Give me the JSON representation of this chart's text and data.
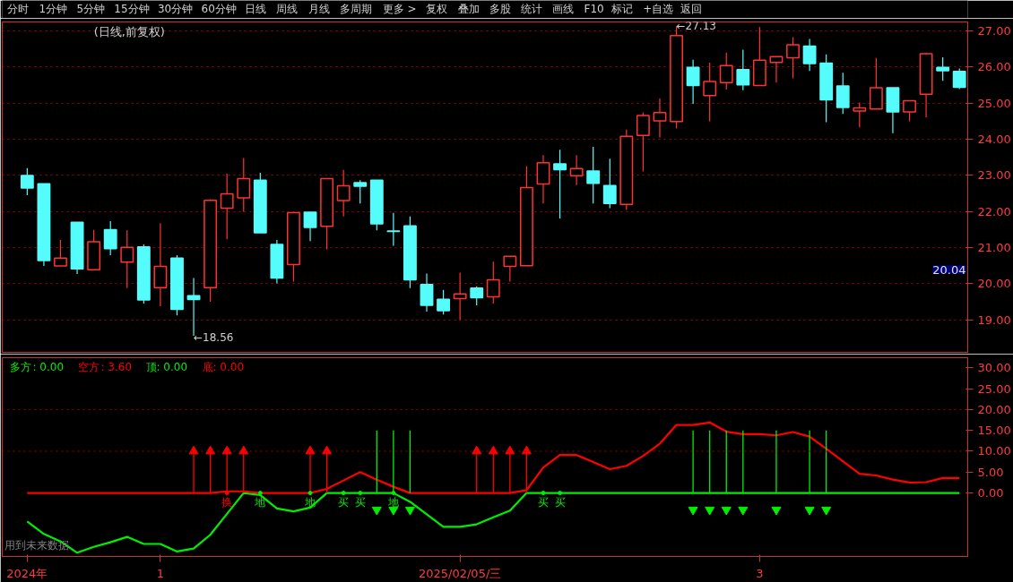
{
  "chart_data": [
    {
      "type": "candlestick",
      "title": "(日线,前复权)",
      "categories": [
        null,
        null,
        null,
        null,
        null,
        null,
        null,
        null,
        null,
        null,
        null,
        null,
        null,
        null,
        null,
        null,
        null,
        null,
        null,
        null,
        null,
        null,
        null,
        null,
        null,
        null,
        null,
        null,
        null,
        null,
        null,
        null,
        null,
        null,
        null,
        null,
        null,
        null,
        null,
        null,
        null,
        null,
        null,
        null,
        null,
        null,
        null,
        null,
        null,
        null,
        null,
        null,
        null,
        null,
        null,
        null,
        null
      ],
      "ohlc": [
        [
          23.0,
          23.2,
          22.45,
          22.65
        ],
        [
          22.77,
          22.77,
          20.49,
          20.64
        ],
        [
          20.49,
          21.21,
          20.49,
          20.71
        ],
        [
          21.7,
          21.7,
          20.27,
          20.41
        ],
        [
          20.39,
          21.49,
          20.37,
          21.16
        ],
        [
          21.5,
          21.73,
          20.79,
          20.97
        ],
        [
          20.6,
          21.48,
          19.88,
          21.01
        ],
        [
          21.02,
          21.09,
          19.45,
          19.55
        ],
        [
          19.89,
          21.68,
          19.38,
          20.48
        ],
        [
          20.71,
          20.79,
          19.12,
          19.29
        ],
        [
          19.67,
          20.16,
          18.56,
          19.56
        ],
        [
          19.89,
          22.34,
          19.5,
          22.31
        ],
        [
          22.09,
          23.05,
          21.23,
          22.49
        ],
        [
          22.38,
          23.48,
          21.99,
          22.91
        ],
        [
          22.87,
          23.07,
          21.41,
          21.41
        ],
        [
          21.09,
          21.21,
          20.01,
          20.16
        ],
        [
          20.53,
          21.97,
          20.06,
          21.97
        ],
        [
          21.98,
          21.98,
          21.18,
          21.56
        ],
        [
          21.59,
          22.91,
          20.95,
          22.91
        ],
        [
          22.3,
          23.15,
          21.86,
          22.71
        ],
        [
          22.8,
          22.87,
          22.22,
          22.7
        ],
        [
          22.87,
          22.87,
          21.48,
          21.66
        ],
        [
          21.46,
          21.96,
          21.05,
          21.45
        ],
        [
          21.6,
          21.86,
          19.88,
          20.11
        ],
        [
          19.98,
          20.28,
          19.23,
          19.4
        ],
        [
          19.57,
          19.83,
          19.15,
          19.25
        ],
        [
          19.59,
          20.31,
          19.0,
          19.72
        ],
        [
          19.88,
          19.93,
          19.4,
          19.61
        ],
        [
          19.64,
          20.61,
          19.45,
          20.11
        ],
        [
          20.48,
          20.76,
          20.06,
          20.76
        ],
        [
          20.5,
          23.25,
          20.5,
          22.66
        ],
        [
          22.76,
          23.56,
          22.22,
          23.35
        ],
        [
          23.32,
          23.71,
          21.81,
          23.16
        ],
        [
          22.99,
          23.56,
          22.73,
          23.19
        ],
        [
          23.12,
          23.79,
          22.22,
          22.78
        ],
        [
          22.72,
          23.46,
          22.09,
          22.22
        ],
        [
          22.2,
          24.27,
          22.04,
          24.08
        ],
        [
          24.11,
          24.74,
          23.11,
          24.66
        ],
        [
          24.51,
          25.13,
          24.05,
          24.74
        ],
        [
          24.49,
          27.13,
          24.3,
          26.87
        ],
        [
          25.99,
          26.2,
          24.98,
          25.49
        ],
        [
          25.21,
          26.12,
          24.5,
          25.6
        ],
        [
          25.57,
          26.4,
          25.38,
          26.04
        ],
        [
          25.93,
          26.48,
          25.36,
          25.51
        ],
        [
          25.49,
          27.11,
          25.49,
          26.19
        ],
        [
          26.13,
          26.29,
          25.57,
          26.29
        ],
        [
          26.26,
          26.83,
          25.69,
          26.62
        ],
        [
          26.58,
          26.78,
          25.89,
          26.1
        ],
        [
          26.11,
          26.35,
          24.47,
          25.09
        ],
        [
          25.48,
          25.84,
          24.7,
          24.88
        ],
        [
          24.78,
          25.02,
          24.33,
          24.87
        ],
        [
          24.84,
          26.25,
          24.84,
          25.43
        ],
        [
          25.43,
          25.43,
          24.17,
          24.76
        ],
        [
          24.76,
          25.07,
          24.5,
          25.07
        ],
        [
          25.25,
          26.39,
          24.61,
          26.37
        ],
        [
          25.99,
          26.27,
          25.62,
          25.9
        ],
        [
          25.88,
          25.96,
          25.39,
          25.44
        ]
      ],
      "colors": [
        "#54fcfc",
        "#54fcfc",
        "#ff3232",
        "#54fcfc",
        "#ff3232",
        "#54fcfc",
        "#ff3232",
        "#54fcfc",
        "#ff3232",
        "#54fcfc",
        "#54fcfc",
        "#ff3232",
        "#ff3232",
        "#ff3232",
        "#54fcfc",
        "#54fcfc",
        "#ff3232",
        "#54fcfc",
        "#ff3232",
        "#ff3232",
        "#54fcfc",
        "#54fcfc",
        "#54fcfc",
        "#54fcfc",
        "#54fcfc",
        "#54fcfc",
        "#ff3232",
        "#54fcfc",
        "#ff3232",
        "#ff3232",
        "#ff3232",
        "#ff3232",
        "#54fcfc",
        "#ff3232",
        "#54fcfc",
        "#54fcfc",
        "#ff3232",
        "#ff3232",
        "#ff3232",
        "#ff3232",
        "#54fcfc",
        "#ff3232",
        "#ff3232",
        "#54fcfc",
        "#ff3232",
        "#ff3232",
        "#ff3232",
        "#54fcfc",
        "#54fcfc",
        "#54fcfc",
        "#ff3232",
        "#ff3232",
        "#54fcfc",
        "#ff3232",
        "#ff3232",
        "#54fcfc",
        "#54fcfc"
      ],
      "ylim": [
        18.1,
        27.25
      ],
      "yticks": [
        {
          "value": 19,
          "label": "19.00"
        },
        {
          "value": 20,
          "label": "20.00"
        },
        {
          "value": 21,
          "label": "21.00"
        },
        {
          "value": 22,
          "label": "22.00"
        },
        {
          "value": 23,
          "label": "23.00"
        },
        {
          "value": 24,
          "label": "24.00"
        },
        {
          "value": 25,
          "label": "25.00"
        },
        {
          "value": 26,
          "label": "26.00"
        },
        {
          "value": 27,
          "label": "27.00"
        }
      ],
      "grid": "y",
      "tick_labels": "y",
      "annotations": [
        "←27.13",
        "←18.56",
        "20.04",
        "分时",
        "1分钟",
        "5分钟",
        "15分钟",
        "30分钟",
        "60分钟",
        "日线",
        "周线",
        "月线",
        "多周期",
        "更多 >",
        "复权",
        "叠加",
        "多股",
        "统计",
        "画线",
        "F10",
        "标记",
        "+自选",
        "返回"
      ]
    },
    {
      "type": "line",
      "categories": [
        "2024年",
        null,
        null,
        null,
        null,
        null,
        null,
        null,
        "1",
        null,
        null,
        null,
        null,
        null,
        null,
        null,
        null,
        null,
        null,
        null,
        null,
        null,
        null,
        null,
        null,
        null,
        "2025/02/05/三",
        null,
        null,
        null,
        null,
        null,
        null,
        null,
        null,
        null,
        null,
        null,
        null,
        null,
        null,
        null,
        null,
        null,
        "3",
        null,
        null,
        null,
        null,
        null,
        null,
        null,
        null,
        null,
        null,
        null,
        null
      ],
      "series": [
        {
          "name": "多方",
          "color": "#00ee00",
          "values": [
            -6.8,
            -9.8,
            -11.6,
            -14.3,
            -12.9,
            -11.8,
            -10.5,
            -12.2,
            -12.2,
            -14.0,
            -13.3,
            -10.0,
            -5.0,
            0,
            -0.5,
            -3.7,
            -4.4,
            -3.5,
            0,
            0,
            0,
            0,
            0,
            -2.1,
            -5.1,
            -8.1,
            -8.1,
            -7.5,
            -5.8,
            -4.2,
            0,
            0,
            0,
            0,
            0,
            0,
            0,
            0,
            0,
            0,
            0,
            0,
            0,
            0,
            0,
            0,
            0,
            0,
            0,
            0,
            0,
            0,
            0,
            0,
            0,
            0,
            0
          ]
        },
        {
          "name": "空方",
          "color": "#ff0000",
          "values": [
            0,
            0,
            0,
            0,
            0,
            0,
            0,
            0,
            0,
            0,
            0,
            0,
            0.4,
            0.4,
            0,
            0,
            0,
            0,
            1.0,
            3.0,
            5.0,
            3.2,
            1.5,
            0,
            0,
            0,
            0,
            0,
            0,
            0,
            0.7,
            6.1,
            9.1,
            9.1,
            7.4,
            5.7,
            6.5,
            8.9,
            11.8,
            16.3,
            16.3,
            16.9,
            14.7,
            14.1,
            14.1,
            13.8,
            14.6,
            13.5,
            10.6,
            7.6,
            4.6,
            4.2,
            3.2,
            2.5,
            2.6,
            3.6,
            3.6
          ]
        },
        {
          "type": "bar",
          "color": "#ff0000",
          "values": [
            null,
            null,
            null,
            null,
            null,
            null,
            null,
            null,
            null,
            null,
            10,
            10,
            10,
            10,
            null,
            null,
            null,
            10,
            10,
            null,
            null,
            null,
            null,
            null,
            null,
            null,
            null,
            10,
            10,
            10,
            10,
            null,
            null,
            null,
            null,
            null,
            null,
            null,
            null,
            null,
            null,
            null,
            null,
            null,
            null,
            null,
            null,
            null,
            null,
            null,
            null,
            null,
            null,
            null,
            null,
            null,
            null
          ]
        },
        {
          "type": "scatter",
          "marker": "triangle",
          "color": "#ff0000",
          "values": [
            null,
            null,
            null,
            null,
            null,
            null,
            null,
            null,
            null,
            null,
            10,
            10,
            10,
            10,
            null,
            null,
            null,
            10,
            10,
            null,
            null,
            null,
            null,
            null,
            null,
            null,
            null,
            10,
            10,
            10,
            10,
            null,
            null,
            null,
            null,
            null,
            null,
            null,
            null,
            null,
            null,
            null,
            null,
            null,
            null,
            null,
            null,
            null,
            null,
            null,
            null,
            null,
            null,
            null,
            null,
            null,
            null
          ]
        },
        {
          "type": "bar",
          "color": "#00ee00",
          "values": [
            null,
            null,
            null,
            null,
            null,
            null,
            null,
            null,
            null,
            null,
            null,
            null,
            null,
            null,
            null,
            null,
            null,
            null,
            null,
            null,
            null,
            15,
            15,
            15,
            null,
            null,
            null,
            null,
            null,
            null,
            null,
            null,
            null,
            null,
            null,
            null,
            null,
            null,
            null,
            null,
            15,
            15,
            15,
            15,
            null,
            15,
            null,
            15,
            15,
            null,
            null,
            null,
            null,
            null,
            null,
            null,
            null
          ]
        },
        {
          "type": "scatter",
          "marker": "triangle",
          "color": "#00ee00",
          "values": [
            null,
            null,
            null,
            null,
            null,
            null,
            null,
            null,
            null,
            null,
            null,
            null,
            null,
            null,
            null,
            null,
            null,
            null,
            null,
            null,
            null,
            -4,
            -4,
            -4,
            null,
            null,
            null,
            null,
            null,
            null,
            null,
            null,
            null,
            null,
            null,
            null,
            null,
            null,
            null,
            null,
            -4,
            -4,
            -4,
            -4,
            null,
            -4,
            null,
            -4,
            -4,
            null,
            null,
            null,
            null,
            null,
            null,
            null,
            null
          ]
        },
        {
          "type": "scatter",
          "marker": "circle",
          "color": "#ff0000",
          "values": [
            null,
            null,
            null,
            null,
            null,
            null,
            null,
            null,
            null,
            null,
            null,
            null,
            0,
            null,
            null,
            null,
            null,
            null,
            null,
            null,
            null,
            null,
            null,
            null,
            null,
            null,
            null,
            null,
            null,
            null,
            null,
            null,
            null,
            null,
            null,
            null,
            null,
            null,
            null,
            null,
            null,
            null,
            null,
            null,
            null,
            null,
            null,
            null,
            null,
            null,
            null,
            null,
            null,
            null,
            null,
            null,
            null
          ],
          "value_labels": [
            null,
            null,
            null,
            null,
            null,
            null,
            null,
            null,
            null,
            null,
            null,
            null,
            "换",
            null,
            null,
            null,
            null,
            null,
            null,
            null,
            null,
            null,
            null,
            null,
            null,
            null,
            null,
            null,
            null,
            null,
            null,
            null,
            null,
            null,
            null,
            null,
            null,
            null,
            null,
            null,
            null,
            null,
            null,
            null,
            null,
            null,
            null,
            null,
            null,
            null,
            null,
            null,
            null,
            null,
            null,
            null,
            null
          ]
        },
        {
          "type": "scatter",
          "marker": "circle",
          "color": "#00ee00",
          "values": [
            null,
            null,
            null,
            null,
            null,
            null,
            null,
            null,
            null,
            null,
            null,
            null,
            null,
            null,
            0,
            null,
            null,
            0,
            null,
            0,
            0,
            null,
            0,
            null,
            null,
            null,
            null,
            null,
            null,
            null,
            null,
            0,
            0,
            null,
            null,
            null,
            null,
            null,
            null,
            null,
            null,
            null,
            null,
            null,
            null,
            null,
            null,
            null,
            null,
            null,
            null,
            null,
            null,
            null,
            null,
            null,
            null
          ],
          "value_labels": [
            null,
            null,
            null,
            null,
            null,
            null,
            null,
            null,
            null,
            null,
            null,
            null,
            null,
            null,
            "地",
            null,
            null,
            "地",
            null,
            "买",
            "买",
            null,
            "地",
            null,
            null,
            null,
            null,
            null,
            null,
            null,
            null,
            "买",
            "买",
            null,
            null,
            null,
            null,
            null,
            null,
            null,
            null,
            null,
            null,
            null,
            null,
            null,
            null,
            null,
            null,
            null,
            null,
            null,
            null,
            null,
            null,
            null,
            null
          ]
        }
      ],
      "ylim": [
        -15.2,
        32.4
      ],
      "yticks": [
        {
          "value": 0,
          "label": "0.00"
        },
        {
          "value": 5,
          "label": "5.00"
        },
        {
          "value": 10,
          "label": "10.00"
        },
        {
          "value": 15,
          "label": "15.00"
        },
        {
          "value": 20,
          "label": "20.00"
        },
        {
          "value": 25,
          "label": "25.00"
        },
        {
          "value": 30,
          "label": "30.00"
        }
      ],
      "ref_lines": [
        {
          "axis": "y",
          "value": 10,
          "color": "#a00000",
          "line_style": "dotted"
        },
        {
          "axis": "y",
          "value": 20,
          "color": "#a00000",
          "line_style": "dotted"
        }
      ],
      "legend": "top left",
      "annotations": [
        ": 0.00",
        ": 3.60",
        "顶: 0.00",
        "底: 0.00",
        "用到未来数据"
      ]
    }
  ]
}
